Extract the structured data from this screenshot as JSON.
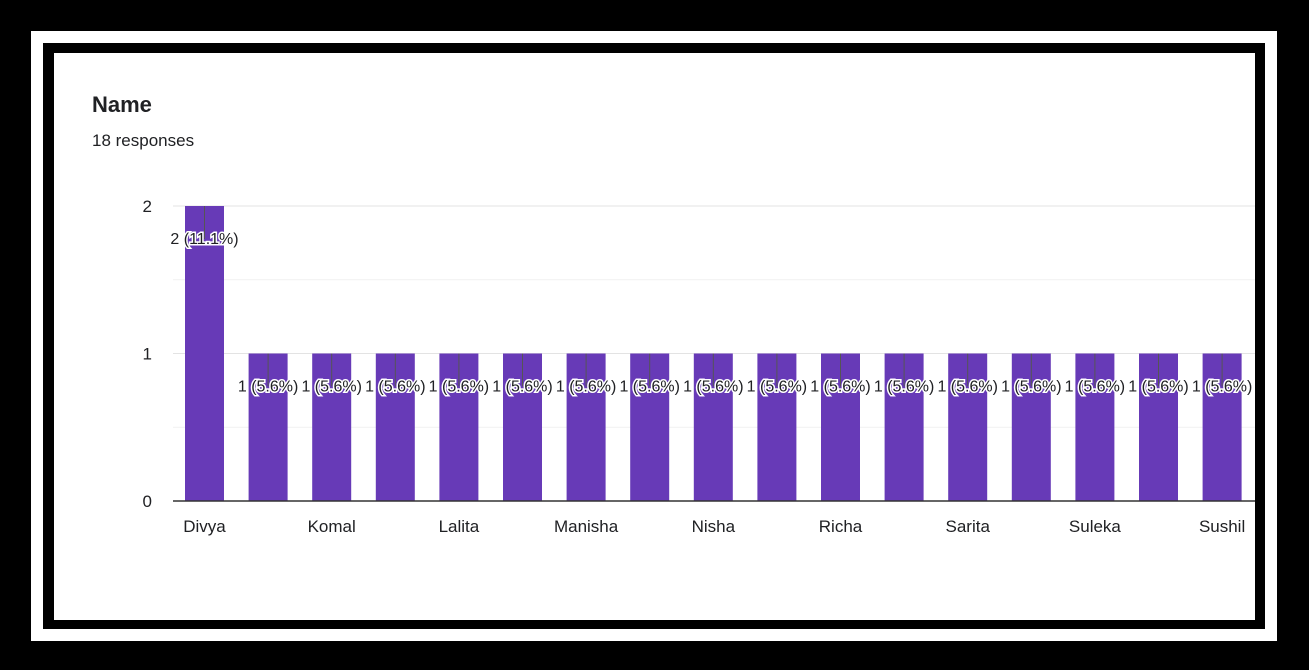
{
  "card": {
    "title": "Name",
    "subtitle": "18 responses"
  },
  "colors": {
    "bar": "#673ab7",
    "text": "#202124",
    "grid": "#e0e0e0"
  },
  "chart_data": {
    "type": "bar",
    "categories": [
      "Divya",
      "",
      "Komal",
      "",
      "Lalita",
      "",
      "Manisha",
      "",
      "Nisha",
      "",
      "Richa",
      "",
      "Sarita",
      "",
      "Suleka",
      "",
      "Sushil"
    ],
    "values": [
      2,
      1,
      1,
      1,
      1,
      1,
      1,
      1,
      1,
      1,
      1,
      1,
      1,
      1,
      1,
      1,
      1
    ],
    "data_labels": [
      "2 (11.1%)",
      "1 (5.6%)",
      "1 (5.6%)",
      "1 (5.6%)",
      "1 (5.6%)",
      "1 (5.6%)",
      "1 (5.6%)",
      "1 (5.6%)",
      "1 (5.6%)",
      "1 (5.6%)",
      "1 (5.6%)",
      "1 (5.6%)",
      "1 (5.6%)",
      "1 (5.6%)",
      "1 (5.6%)",
      "1 (5.6%)",
      "1 (5.6%)"
    ],
    "yticks": [
      "0",
      "1",
      "2"
    ],
    "ylim": [
      0,
      2
    ],
    "grid": true,
    "title": "Name",
    "xlabel": "",
    "ylabel": ""
  }
}
